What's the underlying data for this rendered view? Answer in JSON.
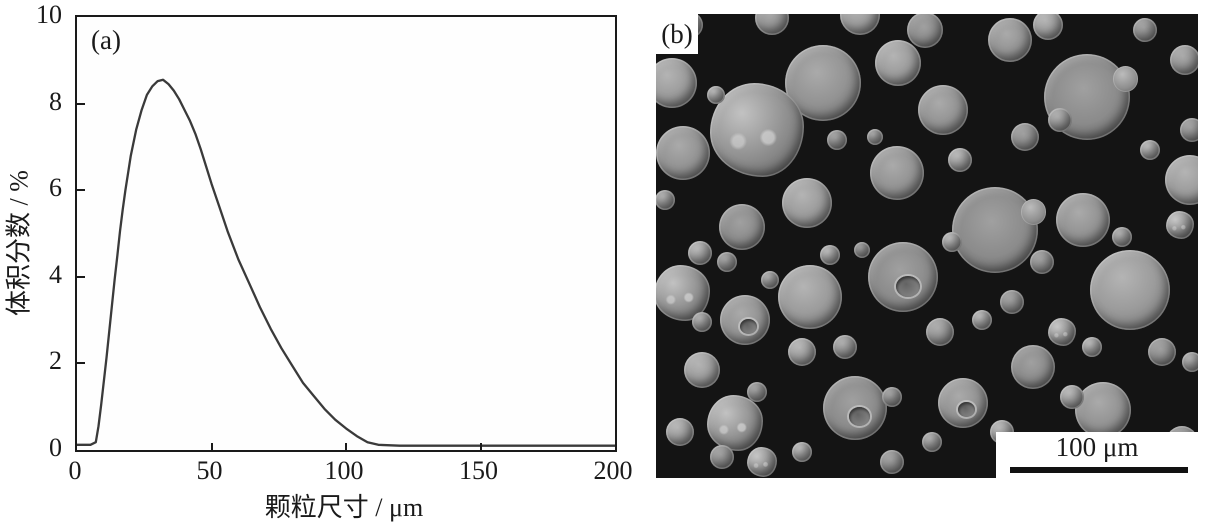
{
  "figure": {
    "panel_a_label": "(a)",
    "panel_b_label": "(b)"
  },
  "chart_data": {
    "type": "line",
    "title": "",
    "xlabel": "颗粒尺寸 / μm",
    "ylabel": "体积分数 / %",
    "xlim": [
      0,
      200
    ],
    "ylim": [
      0,
      10
    ],
    "x_ticks": [
      0,
      50,
      100,
      150,
      200
    ],
    "y_ticks": [
      0,
      2,
      4,
      6,
      8,
      10
    ],
    "grid": false,
    "legend": "none",
    "line_color": "#3a3a3a",
    "series": [
      {
        "name": "volume fraction distribution",
        "points": [
          [
            0,
            0.12
          ],
          [
            5,
            0.12
          ],
          [
            7,
            0.18
          ],
          [
            8,
            0.55
          ],
          [
            9,
            1.05
          ],
          [
            10,
            1.6
          ],
          [
            11,
            2.15
          ],
          [
            12,
            2.75
          ],
          [
            13,
            3.35
          ],
          [
            14,
            3.95
          ],
          [
            15,
            4.5
          ],
          [
            16,
            5.05
          ],
          [
            17,
            5.55
          ],
          [
            18,
            6.0
          ],
          [
            19,
            6.4
          ],
          [
            20,
            6.8
          ],
          [
            22,
            7.4
          ],
          [
            24,
            7.85
          ],
          [
            26,
            8.2
          ],
          [
            28,
            8.4
          ],
          [
            30,
            8.52
          ],
          [
            32,
            8.55
          ],
          [
            34,
            8.45
          ],
          [
            36,
            8.3
          ],
          [
            38,
            8.1
          ],
          [
            40,
            7.85
          ],
          [
            42,
            7.6
          ],
          [
            44,
            7.3
          ],
          [
            46,
            6.95
          ],
          [
            48,
            6.55
          ],
          [
            50,
            6.15
          ],
          [
            53,
            5.6
          ],
          [
            56,
            5.05
          ],
          [
            60,
            4.4
          ],
          [
            64,
            3.85
          ],
          [
            68,
            3.3
          ],
          [
            72,
            2.8
          ],
          [
            76,
            2.35
          ],
          [
            80,
            1.95
          ],
          [
            84,
            1.55
          ],
          [
            88,
            1.25
          ],
          [
            92,
            0.95
          ],
          [
            96,
            0.7
          ],
          [
            100,
            0.5
          ],
          [
            104,
            0.32
          ],
          [
            108,
            0.18
          ],
          [
            112,
            0.12
          ],
          [
            120,
            0.1
          ],
          [
            140,
            0.1
          ],
          [
            160,
            0.1
          ],
          [
            180,
            0.1
          ],
          [
            200,
            0.1
          ]
        ],
        "peak": {
          "x": 31,
          "y": 8.55
        }
      }
    ]
  },
  "sem": {
    "scale_bar_label": "100 μm",
    "background": "#141414",
    "particle_tone": "#949494",
    "highlight_tone": "#bcbcbc",
    "particles": [
      [
        30.8,
        14.9,
        38,
        0
      ],
      [
        18.6,
        25.0,
        47,
        1
      ],
      [
        79.5,
        17.9,
        43,
        3
      ],
      [
        53.0,
        20.7,
        25,
        0
      ],
      [
        44.6,
        10.6,
        23,
        0
      ],
      [
        62.5,
        46.6,
        43,
        3
      ],
      [
        44.5,
        34.3,
        27,
        0
      ],
      [
        27.9,
        40.7,
        25,
        0
      ],
      [
        15.9,
        45.9,
        23,
        0
      ],
      [
        5.0,
        30.0,
        27,
        0
      ],
      [
        3.0,
        14.9,
        25,
        0
      ],
      [
        45.6,
        56.7,
        35,
        2
      ],
      [
        78.8,
        44.4,
        27,
        0
      ],
      [
        87.5,
        59.5,
        40,
        0
      ],
      [
        4.8,
        60.1,
        28,
        1
      ],
      [
        16.4,
        65.9,
        25,
        2
      ],
      [
        28.4,
        61.0,
        32,
        0
      ],
      [
        36.7,
        84.9,
        32,
        2
      ],
      [
        56.6,
        83.8,
        25,
        2
      ],
      [
        14.6,
        88.1,
        28,
        1
      ],
      [
        69.6,
        76.1,
        22,
        0
      ],
      [
        82.5,
        85.3,
        28,
        0
      ],
      [
        8.5,
        76.7,
        18,
        0
      ],
      [
        6.3,
        2.4,
        13,
        0
      ],
      [
        21.4,
        0.9,
        17,
        0
      ],
      [
        37.6,
        0.2,
        20,
        0
      ],
      [
        49.6,
        3.4,
        18,
        0
      ],
      [
        65.3,
        5.6,
        22,
        0
      ],
      [
        72.3,
        2.4,
        15,
        0
      ],
      [
        90.2,
        3.4,
        12,
        0
      ],
      [
        97.6,
        9.9,
        15,
        0
      ],
      [
        11.1,
        17.5,
        9,
        0
      ],
      [
        33.4,
        27.2,
        10,
        0
      ],
      [
        40.4,
        26.5,
        8,
        0
      ],
      [
        56.1,
        31.5,
        12,
        0
      ],
      [
        68.1,
        26.5,
        14,
        0
      ],
      [
        74.5,
        22.8,
        12,
        0
      ],
      [
        91.1,
        29.3,
        10,
        0
      ],
      [
        98.9,
        25.0,
        12,
        0
      ],
      [
        1.7,
        40.1,
        10,
        0
      ],
      [
        8.1,
        51.5,
        12,
        0
      ],
      [
        13.1,
        53.4,
        10,
        0
      ],
      [
        21.0,
        57.3,
        9,
        0
      ],
      [
        32.1,
        51.9,
        10,
        0
      ],
      [
        38.0,
        50.9,
        8,
        0
      ],
      [
        52.4,
        68.5,
        14,
        0
      ],
      [
        60.1,
        65.9,
        10,
        0
      ],
      [
        65.7,
        62.1,
        12,
        0
      ],
      [
        74.9,
        68.5,
        14,
        1
      ],
      [
        80.4,
        71.8,
        10,
        0
      ],
      [
        93.4,
        72.8,
        14,
        0
      ],
      [
        98.9,
        75.0,
        10,
        0
      ],
      [
        4.4,
        90.1,
        14,
        0
      ],
      [
        12.2,
        95.5,
        12,
        0
      ],
      [
        19.6,
        96.6,
        15,
        1
      ],
      [
        26.9,
        94.4,
        10,
        0
      ],
      [
        43.5,
        96.6,
        12,
        0
      ],
      [
        50.9,
        92.2,
        10,
        0
      ],
      [
        63.8,
        90.1,
        12,
        0
      ],
      [
        97.0,
        92.2,
        16,
        0
      ],
      [
        34.9,
        71.8,
        12,
        0
      ],
      [
        26.9,
        72.8,
        14,
        0
      ],
      [
        18.6,
        81.5,
        10,
        0
      ],
      [
        8.5,
        66.4,
        10,
        0
      ],
      [
        54.6,
        49.1,
        10,
        0
      ],
      [
        71.2,
        53.4,
        12,
        0
      ],
      [
        86.0,
        48.1,
        10,
        0
      ],
      [
        76.8,
        82.5,
        12,
        0
      ],
      [
        43.5,
        82.5,
        10,
        0
      ],
      [
        96.7,
        45.5,
        14,
        1
      ],
      [
        98.5,
        35.8,
        25,
        0
      ]
    ]
  }
}
